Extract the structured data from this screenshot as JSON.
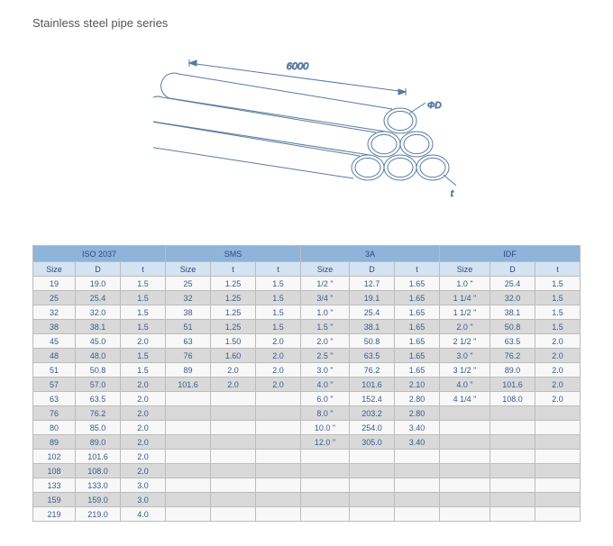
{
  "title": "Stainless steel pipe series",
  "diagram": {
    "length_label": "6000",
    "diameter_label": "ΦD",
    "thickness_label": "t",
    "line_color": "#5a7aa0",
    "label_color": "#3a5a8a"
  },
  "table": {
    "header_bg": "#8fb4d9",
    "subheader_bg": "#d4e3f2",
    "row_alt_bg": "#d9d9d9",
    "row_bg": "#f8f8f8",
    "text_color": "#3a5a8a",
    "border_color": "#bcbcbc",
    "groups": [
      {
        "name": "ISO  2037",
        "cols": [
          "Size",
          "D",
          "t"
        ]
      },
      {
        "name": "SMS",
        "cols": [
          "Size",
          "t",
          "t"
        ]
      },
      {
        "name": "3A",
        "cols": [
          "Size",
          "D",
          "t"
        ]
      },
      {
        "name": "IDF",
        "cols": [
          "Size",
          "D",
          "t"
        ]
      }
    ],
    "rows": [
      [
        "19",
        "19.0",
        "1.5",
        "25",
        "1.25",
        "1.5",
        "1/2  \"",
        "12.7",
        "1.65",
        "1.0  \"",
        "25.4",
        "1.5"
      ],
      [
        "25",
        "25.4",
        "1.5",
        "32",
        "1.25",
        "1.5",
        "3/4  \"",
        "19.1",
        "1.65",
        "1 1/4  \"",
        "32.0",
        "1.5"
      ],
      [
        "32",
        "32.0",
        "1.5",
        "38",
        "1.25",
        "1.5",
        "1.0  \"",
        "25.4",
        "1.65",
        "1 1/2  \"",
        "38.1",
        "1.5"
      ],
      [
        "38",
        "38.1",
        "1.5",
        "51",
        "1.25",
        "1.5",
        "1.5  \"",
        "38.1",
        "1.65",
        "2.0  \"",
        "50.8",
        "1.5"
      ],
      [
        "45",
        "45.0",
        "2.0",
        "63",
        "1.50",
        "2.0",
        "2.0  \"",
        "50.8",
        "1.65",
        "2 1/2  \"",
        "63.5",
        "2.0"
      ],
      [
        "48",
        "48.0",
        "1.5",
        "76",
        "1.60",
        "2.0",
        "2.5  \"",
        "63.5",
        "1.65",
        "3.0  \"",
        "76.2",
        "2.0"
      ],
      [
        "51",
        "50.8",
        "1.5",
        "89",
        "2.0",
        "2.0",
        "3.0  \"",
        "76.2",
        "1.65",
        "3 1/2  \"",
        "89.0",
        "2.0"
      ],
      [
        "57",
        "57.0",
        "2.0",
        "101.6",
        "2.0",
        "2.0",
        "4.0  \"",
        "101.6",
        "2.10",
        "4.0  \"",
        "101.6",
        "2.0"
      ],
      [
        "63",
        "63.5",
        "2.0",
        "",
        "",
        "",
        "6.0  \"",
        "152.4",
        "2.80",
        "4 1/4  \"",
        "108.0",
        "2.0"
      ],
      [
        "76",
        "76.2",
        "2.0",
        "",
        "",
        "",
        "8.0  \"",
        "203.2",
        "2.80",
        "",
        "",
        ""
      ],
      [
        "80",
        "85.0",
        "2.0",
        "",
        "",
        "",
        "10.0  \"",
        "254.0",
        "3.40",
        "",
        "",
        ""
      ],
      [
        "89",
        "89.0",
        "2.0",
        "",
        "",
        "",
        "12.0  \"",
        "305.0",
        "3.40",
        "",
        "",
        ""
      ],
      [
        "102",
        "101.6",
        "2.0",
        "",
        "",
        "",
        "",
        "",
        "",
        "",
        "",
        ""
      ],
      [
        "108",
        "108.0",
        "2.0",
        "",
        "",
        "",
        "",
        "",
        "",
        "",
        "",
        ""
      ],
      [
        "133",
        "133.0",
        "3.0",
        "",
        "",
        "",
        "",
        "",
        "",
        "",
        "",
        ""
      ],
      [
        "159",
        "159.0",
        "3.0",
        "",
        "",
        "",
        "",
        "",
        "",
        "",
        "",
        ""
      ],
      [
        "219",
        "219.0",
        "4.0",
        "",
        "",
        "",
        "",
        "",
        "",
        "",
        "",
        ""
      ]
    ]
  }
}
